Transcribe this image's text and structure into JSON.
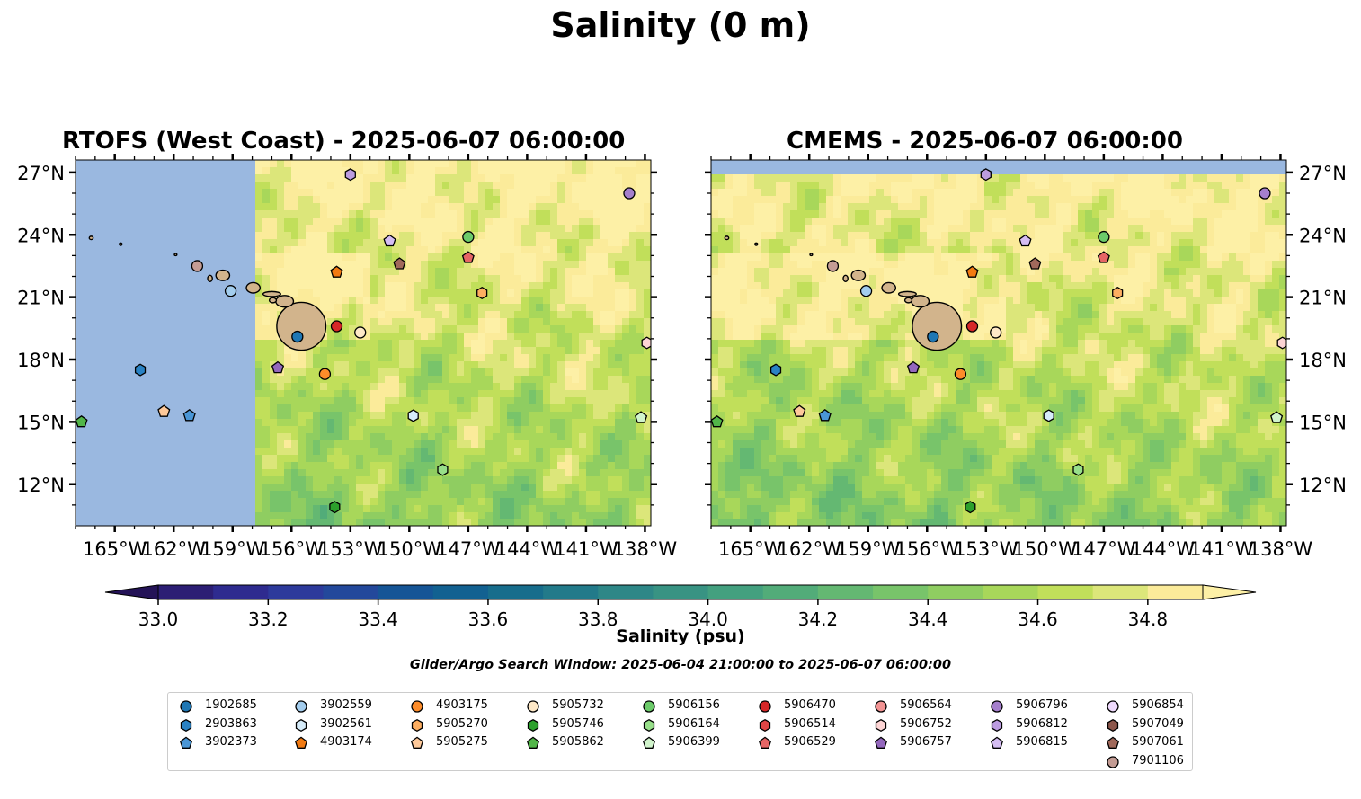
{
  "title": "Salinity (0 m)",
  "panels": [
    {
      "id": "rtofs",
      "title": "RTOFS (West Coast) - 2025-06-07 06:00:00"
    },
    {
      "id": "cmems",
      "title": "CMEMS - 2025-06-07 06:00:00"
    }
  ],
  "map": {
    "lon_range": [
      -167,
      -137.7
    ],
    "lat_range": [
      10,
      27.6
    ],
    "lon_ticks": [
      -165,
      -162,
      -159,
      -156,
      -153,
      -150,
      -147,
      -144,
      -141,
      -138
    ],
    "lon_tick_labels": [
      "165°W",
      "162°W",
      "159°W",
      "156°W",
      "153°W",
      "150°W",
      "147°W",
      "144°W",
      "141°W",
      "138°W"
    ],
    "lat_ticks": [
      12,
      15,
      18,
      21,
      24,
      27
    ],
    "lat_tick_labels": [
      "12°N",
      "15°N",
      "18°N",
      "21°N",
      "24°N",
      "27°N"
    ],
    "rtofs_domain_west_lon": -157.8,
    "land_color": "#d2b48c",
    "nodata_color": "#9ab8e0"
  },
  "colorbar": {
    "label": "Salinity (psu)",
    "min": 33.0,
    "max": 34.9,
    "step": 0.1,
    "ticks": [
      33.0,
      33.2,
      33.4,
      33.6,
      33.8,
      34.0,
      34.2,
      34.4,
      34.6,
      34.8
    ],
    "tick_labels": [
      "33.0",
      "33.2",
      "33.4",
      "33.6",
      "33.8",
      "34.0",
      "34.2",
      "34.4",
      "34.6",
      "34.8"
    ],
    "colors": [
      "#2c1e74",
      "#2e2b8f",
      "#2d3a9b",
      "#23489b",
      "#165596",
      "#126191",
      "#176d8c",
      "#227a8a",
      "#2e8787",
      "#389383",
      "#43a07f",
      "#52ac79",
      "#64b872",
      "#78c46a",
      "#8fcd61",
      "#a8d75a",
      "#c1df5a",
      "#dce67a",
      "#fbeb9a"
    ],
    "under_color": "#241357",
    "over_color": "#fdf0a6"
  },
  "search_window": "Glider/Argo Search Window: 2025-06-04 21:00:00 to 2025-06-07 06:00:00",
  "floats": [
    {
      "id": "1902685",
      "marker": "circle",
      "color": "#1f77b4",
      "lon": -155.7,
      "lat": 19.1
    },
    {
      "id": "2903863",
      "marker": "hexagon",
      "color": "#2a82c4",
      "lon": -163.7,
      "lat": 17.5
    },
    {
      "id": "3902373",
      "marker": "pentagon",
      "color": "#4a96d6",
      "lon": -161.2,
      "lat": 15.3
    },
    {
      "id": "3902559",
      "marker": "circle",
      "color": "#a3cdee",
      "lon": -159.1,
      "lat": 21.3
    },
    {
      "id": "3902561",
      "marker": "hexagon",
      "color": "#d6ecfa",
      "lon": -149.8,
      "lat": 15.3
    },
    {
      "id": "4903174",
      "marker": "pentagon",
      "color": "#f27a12",
      "lon": -153.7,
      "lat": 22.2
    },
    {
      "id": "4903175",
      "marker": "circle",
      "color": "#fd8c2a",
      "lon": -154.3,
      "lat": 17.3
    },
    {
      "id": "5905270",
      "marker": "hexagon",
      "color": "#fdae61",
      "lon": -146.3,
      "lat": 21.2
    },
    {
      "id": "5905275",
      "marker": "pentagon",
      "color": "#fec99a",
      "lon": -162.5,
      "lat": 15.5
    },
    {
      "id": "5905732",
      "marker": "circle",
      "color": "#ffe9c7",
      "lon": -152.5,
      "lat": 19.3
    },
    {
      "id": "5905746",
      "marker": "hexagon",
      "color": "#2ca02c",
      "lon": -153.8,
      "lat": 10.9
    },
    {
      "id": "5905862",
      "marker": "pentagon",
      "color": "#52b649",
      "lon": -166.7,
      "lat": 15.0
    },
    {
      "id": "5906156",
      "marker": "circle",
      "color": "#6ccb6a",
      "lon": -147.0,
      "lat": 23.9
    },
    {
      "id": "5906164",
      "marker": "hexagon",
      "color": "#98df8a",
      "lon": -148.3,
      "lat": 12.7
    },
    {
      "id": "5906399",
      "marker": "pentagon",
      "color": "#d1f4cc",
      "lon": -138.2,
      "lat": 15.2
    },
    {
      "id": "5906470",
      "marker": "circle",
      "color": "#d62728",
      "lon": -153.7,
      "lat": 19.6
    },
    {
      "id": "5906514",
      "marker": "hexagon",
      "color": "#e04545",
      "lon": null,
      "lat": null
    },
    {
      "id": "5906529",
      "marker": "pentagon",
      "color": "#e66565",
      "lon": -147.0,
      "lat": 22.9
    },
    {
      "id": "5906564",
      "marker": "circle",
      "color": "#f29393",
      "lon": null,
      "lat": null
    },
    {
      "id": "5906752",
      "marker": "hexagon",
      "color": "#fdd4d4",
      "lon": -137.9,
      "lat": 18.8
    },
    {
      "id": "5906757",
      "marker": "pentagon",
      "color": "#9467bd",
      "lon": -156.7,
      "lat": 17.6
    },
    {
      "id": "5906796",
      "marker": "circle",
      "color": "#a57fcc",
      "lon": -138.8,
      "lat": 26.0
    },
    {
      "id": "5906812",
      "marker": "hexagon",
      "color": "#bc9ce0",
      "lon": -153.0,
      "lat": 26.9
    },
    {
      "id": "5906815",
      "marker": "pentagon",
      "color": "#d5bdf3",
      "lon": -151.0,
      "lat": 23.7
    },
    {
      "id": "5906854",
      "marker": "circle",
      "color": "#eed9fc",
      "lon": null,
      "lat": null
    },
    {
      "id": "5907049",
      "marker": "hexagon",
      "color": "#8c564b",
      "lon": null,
      "lat": null
    },
    {
      "id": "5907061",
      "marker": "pentagon",
      "color": "#a1695b",
      "lon": -150.5,
      "lat": 22.6
    },
    {
      "id": "7901106",
      "marker": "circle",
      "color": "#c49c94",
      "lon": -160.8,
      "lat": 22.5
    }
  ]
}
